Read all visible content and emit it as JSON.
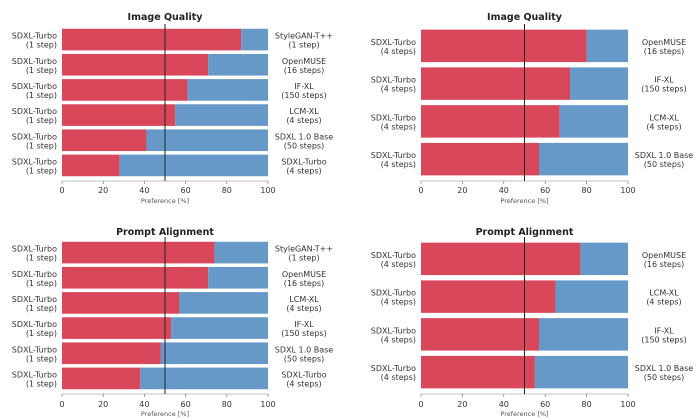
{
  "colors": {
    "left": "#d9475b",
    "right": "#6699c8",
    "ref_line": "#222222"
  },
  "chart_data": [
    {
      "type": "bar",
      "title": "Image Quality",
      "xlabel": "Preference [%]",
      "xlim": [
        0,
        100
      ],
      "xticks": [
        "0",
        "20",
        "40",
        "60",
        "80",
        "100"
      ],
      "reference_line": 50,
      "left_labels": [
        [
          "SDXL-Turbo",
          "(1 step)"
        ],
        [
          "SDXL-Turbo",
          "(1 step)"
        ],
        [
          "SDXL-Turbo",
          "(1 step)"
        ],
        [
          "SDXL-Turbo",
          "(1 step)"
        ],
        [
          "SDXL-Turbo",
          "(1 step)"
        ],
        [
          "SDXL-Turbo",
          "(1 step)"
        ]
      ],
      "right_labels": [
        [
          "StyleGAN-T++",
          "(1 step)"
        ],
        [
          "OpenMUSE",
          "(16 steps)"
        ],
        [
          "IF-XL",
          "(150 steps)"
        ],
        [
          "LCM-XL",
          "(4 steps)"
        ],
        [
          "SDXL 1.0 Base",
          "(50 steps)"
        ],
        [
          "SDXL-Turbo",
          "(4 steps)"
        ]
      ],
      "values": [
        87,
        71,
        61,
        55,
        41,
        28
      ]
    },
    {
      "type": "bar",
      "title": "Image Quality",
      "xlabel": "Preference [%]",
      "xlim": [
        0,
        100
      ],
      "xticks": [
        "0",
        "20",
        "40",
        "60",
        "80",
        "100"
      ],
      "reference_line": 50,
      "left_labels": [
        [
          "SDXL-Turbo",
          "(4 steps)"
        ],
        [
          "SDXL-Turbo",
          "(4 steps)"
        ],
        [
          "SDXL-Turbo",
          "(4 steps)"
        ],
        [
          "SDXL-Turbo",
          "(4 steps)"
        ]
      ],
      "right_labels": [
        [
          "OpenMUSE",
          "(16 steps)"
        ],
        [
          "IF-XL",
          "(150 steps)"
        ],
        [
          "LCM-XL",
          "(4 steps)"
        ],
        [
          "SDXL 1.0 Base",
          "(50 steps)"
        ]
      ],
      "values": [
        80,
        72,
        67,
        57
      ]
    },
    {
      "type": "bar",
      "title": "Prompt Alignment",
      "xlabel": "Preference [%]",
      "xlim": [
        0,
        100
      ],
      "xticks": [
        "0",
        "20",
        "40",
        "60",
        "80",
        "100"
      ],
      "reference_line": 50,
      "left_labels": [
        [
          "SDXL-Turbo",
          "(1 step)"
        ],
        [
          "SDXL-Turbo",
          "(1 step)"
        ],
        [
          "SDXL-Turbo",
          "(1 step)"
        ],
        [
          "SDXL-Turbo",
          "(1 step)"
        ],
        [
          "SDXL-Turbo",
          "(1 step)"
        ],
        [
          "SDXL-Turbo",
          "(1 step)"
        ]
      ],
      "right_labels": [
        [
          "StyleGAN-T++",
          "(1 step)"
        ],
        [
          "OpenMUSE",
          "(16 steps)"
        ],
        [
          "LCM-XL",
          "(4 steps)"
        ],
        [
          "IF-XL",
          "(150 steps)"
        ],
        [
          "SDXL 1.0 Base",
          "(50 steps)"
        ],
        [
          "SDXL-Turbo",
          "(4 steps)"
        ]
      ],
      "values": [
        74,
        71,
        57,
        53,
        48,
        38
      ]
    },
    {
      "type": "bar",
      "title": "Prompt Alignment",
      "xlabel": "Preference [%]",
      "xlim": [
        0,
        100
      ],
      "xticks": [
        "0",
        "20",
        "40",
        "60",
        "80",
        "100"
      ],
      "reference_line": 50,
      "left_labels": [
        [
          "SDXL-Turbo",
          "(4 steps)"
        ],
        [
          "SDXL-Turbo",
          "(4 steps)"
        ],
        [
          "SDXL-Turbo",
          "(4 steps)"
        ],
        [
          "SDXL-Turbo",
          "(4 steps)"
        ]
      ],
      "right_labels": [
        [
          "OpenMUSE",
          "(16 steps)"
        ],
        [
          "LCM-XL",
          "(4 steps)"
        ],
        [
          "IF-XL",
          "(150 steps)"
        ],
        [
          "SDXL 1.0 Base",
          "(50 steps)"
        ]
      ],
      "values": [
        77,
        65,
        57,
        55
      ]
    }
  ]
}
